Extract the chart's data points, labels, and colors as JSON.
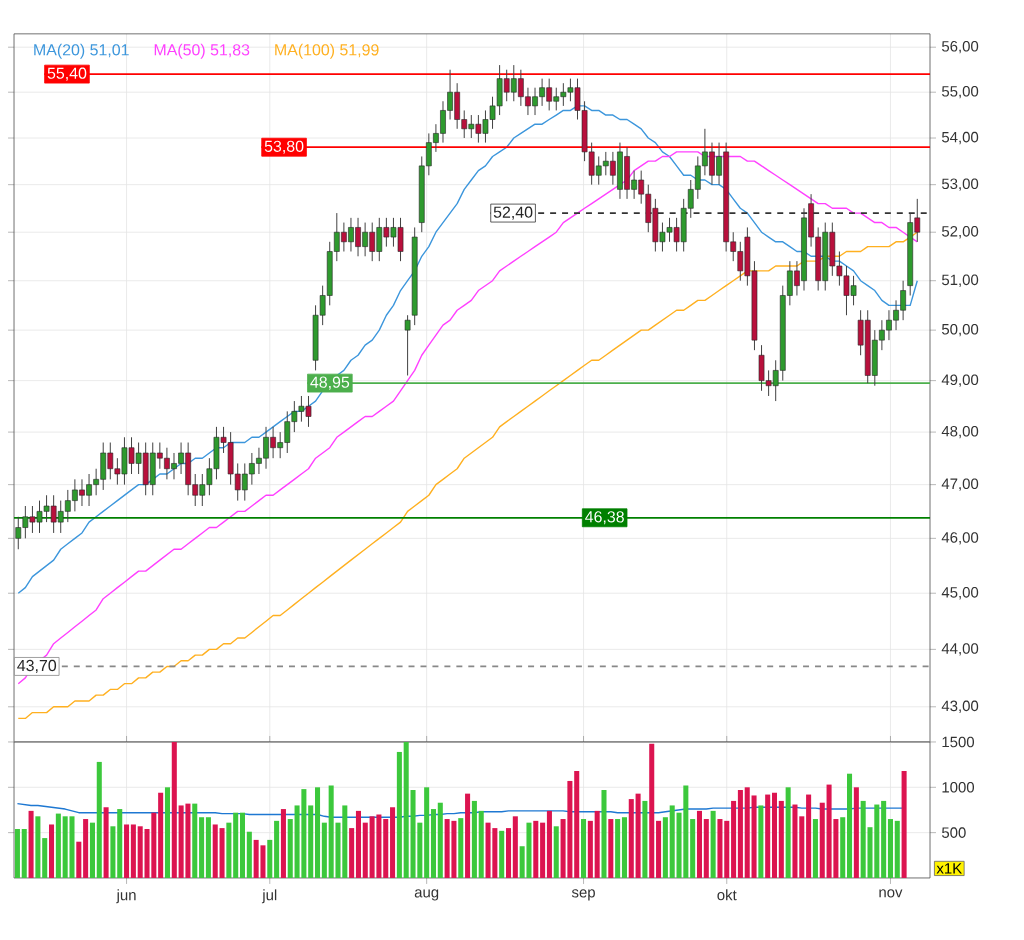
{
  "chart_data": [
    {
      "type": "candlestick",
      "categories": [
        null,
        null,
        null,
        null,
        null,
        null,
        null,
        null,
        null,
        null,
        null,
        null,
        null,
        null,
        null,
        null,
        null,
        null,
        null,
        null,
        null,
        null,
        null,
        null,
        null,
        null,
        null,
        null,
        null,
        null,
        null,
        null,
        null,
        null,
        null,
        null,
        null,
        null,
        null,
        null,
        null,
        null,
        null,
        null,
        null,
        null,
        null,
        null,
        null,
        null,
        null,
        null,
        null,
        null,
        null,
        null,
        null,
        null,
        null,
        null,
        null,
        null,
        null,
        null,
        null,
        null,
        null,
        null,
        null,
        null,
        null,
        null,
        null,
        null,
        null,
        null,
        null,
        null,
        null,
        null,
        null,
        null,
        null,
        null,
        null,
        null,
        null,
        null,
        null,
        null,
        null,
        null,
        null,
        null,
        null,
        null,
        null,
        null,
        null,
        null,
        null,
        null,
        null,
        null,
        null,
        null,
        null,
        null,
        null,
        null,
        null,
        null,
        null,
        null,
        null,
        null,
        null,
        null,
        null,
        null,
        null,
        null,
        null,
        null,
        null,
        null,
        null,
        null
      ],
      "ohlc": [
        [
          46.0,
          46.4,
          45.8,
          46.2
        ],
        [
          46.2,
          46.6,
          46.0,
          46.4
        ],
        [
          46.4,
          46.6,
          46.1,
          46.3
        ],
        [
          46.3,
          46.7,
          46.1,
          46.5
        ],
        [
          46.5,
          46.8,
          46.3,
          46.6
        ],
        [
          46.6,
          46.8,
          46.1,
          46.3
        ],
        [
          46.3,
          46.7,
          46.1,
          46.5
        ],
        [
          46.5,
          46.9,
          46.3,
          46.7
        ],
        [
          46.7,
          47.1,
          46.5,
          46.9
        ],
        [
          46.9,
          47.1,
          46.6,
          46.8
        ],
        [
          46.8,
          47.2,
          46.6,
          47.0
        ],
        [
          47.0,
          47.3,
          46.8,
          47.1
        ],
        [
          47.1,
          47.8,
          46.9,
          47.6
        ],
        [
          47.6,
          47.8,
          47.1,
          47.3
        ],
        [
          47.3,
          47.5,
          47.0,
          47.2
        ],
        [
          47.2,
          47.9,
          47.0,
          47.7
        ],
        [
          47.7,
          47.9,
          47.2,
          47.4
        ],
        [
          47.4,
          47.8,
          47.2,
          47.6
        ],
        [
          47.6,
          47.8,
          46.8,
          47.0
        ],
        [
          47.0,
          47.8,
          46.8,
          47.6
        ],
        [
          47.6,
          47.8,
          47.3,
          47.5
        ],
        [
          47.5,
          47.7,
          47.1,
          47.3
        ],
        [
          47.3,
          47.6,
          47.1,
          47.4
        ],
        [
          47.4,
          47.8,
          47.2,
          47.6
        ],
        [
          47.6,
          47.8,
          46.8,
          47.0
        ],
        [
          47.0,
          47.2,
          46.6,
          46.8
        ],
        [
          46.8,
          47.2,
          46.6,
          47.0
        ],
        [
          47.0,
          47.5,
          46.8,
          47.3
        ],
        [
          47.3,
          48.1,
          47.1,
          47.9
        ],
        [
          47.9,
          48.1,
          47.6,
          47.8
        ],
        [
          47.8,
          48.0,
          47.0,
          47.2
        ],
        [
          47.2,
          47.4,
          46.7,
          46.9
        ],
        [
          46.9,
          47.4,
          46.7,
          47.2
        ],
        [
          47.2,
          47.6,
          47.0,
          47.4
        ],
        [
          47.4,
          47.7,
          47.2,
          47.5
        ],
        [
          47.5,
          48.1,
          47.3,
          47.9
        ],
        [
          47.9,
          48.1,
          47.5,
          47.7
        ],
        [
          47.7,
          48.0,
          47.5,
          47.8
        ],
        [
          47.8,
          48.4,
          47.6,
          48.2
        ],
        [
          48.2,
          48.6,
          48.0,
          48.4
        ],
        [
          48.4,
          48.7,
          48.2,
          48.5
        ],
        [
          48.5,
          48.7,
          48.1,
          48.3
        ],
        [
          49.4,
          50.5,
          49.2,
          50.3
        ],
        [
          50.3,
          50.9,
          50.1,
          50.7
        ],
        [
          50.7,
          51.8,
          50.5,
          51.6
        ],
        [
          51.6,
          52.4,
          51.4,
          52.0
        ],
        [
          52.0,
          52.2,
          51.6,
          51.8
        ],
        [
          51.8,
          52.3,
          51.6,
          52.1
        ],
        [
          52.1,
          52.3,
          51.5,
          51.7
        ],
        [
          51.7,
          52.2,
          51.5,
          52.0
        ],
        [
          52.0,
          52.2,
          51.4,
          51.6
        ],
        [
          51.6,
          52.3,
          51.4,
          52.1
        ],
        [
          52.1,
          52.3,
          51.7,
          51.9
        ],
        [
          51.9,
          52.3,
          51.7,
          52.1
        ],
        [
          52.1,
          52.3,
          51.4,
          51.6
        ],
        [
          50.0,
          50.3,
          49.1,
          50.2
        ],
        [
          50.3,
          52.1,
          50.1,
          51.9
        ],
        [
          52.2,
          53.6,
          52.0,
          53.4
        ],
        [
          53.4,
          54.1,
          53.2,
          53.9
        ],
        [
          53.9,
          54.3,
          53.7,
          54.1
        ],
        [
          54.1,
          54.8,
          53.9,
          54.6
        ],
        [
          54.6,
          55.5,
          54.4,
          55.0
        ],
        [
          55.0,
          55.2,
          54.2,
          54.4
        ],
        [
          54.4,
          54.6,
          54.0,
          54.2
        ],
        [
          54.2,
          54.5,
          54.0,
          54.3
        ],
        [
          54.3,
          54.5,
          53.9,
          54.1
        ],
        [
          54.1,
          54.6,
          53.9,
          54.4
        ],
        [
          54.4,
          54.9,
          54.2,
          54.7
        ],
        [
          54.7,
          55.6,
          54.5,
          55.3
        ],
        [
          55.3,
          55.5,
          54.8,
          55.0
        ],
        [
          55.0,
          55.6,
          54.8,
          55.3
        ],
        [
          55.3,
          55.5,
          54.7,
          54.9
        ],
        [
          54.9,
          55.1,
          54.5,
          54.7
        ],
        [
          54.7,
          55.1,
          54.5,
          54.9
        ],
        [
          54.9,
          55.3,
          54.7,
          55.1
        ],
        [
          55.1,
          55.3,
          54.6,
          54.8
        ],
        [
          54.8,
          55.1,
          54.6,
          54.9
        ],
        [
          54.9,
          55.2,
          54.7,
          55.0
        ],
        [
          55.0,
          55.3,
          54.8,
          55.1
        ],
        [
          55.1,
          55.3,
          54.4,
          54.6
        ],
        [
          54.6,
          54.8,
          53.5,
          53.7
        ],
        [
          53.7,
          53.9,
          53.0,
          53.2
        ],
        [
          53.2,
          53.6,
          53.0,
          53.4
        ],
        [
          53.4,
          53.7,
          53.2,
          53.5
        ],
        [
          53.5,
          53.7,
          53.0,
          53.2
        ],
        [
          52.9,
          53.9,
          52.7,
          53.7
        ],
        [
          53.6,
          53.8,
          52.7,
          52.9
        ],
        [
          52.9,
          53.3,
          52.7,
          53.1
        ],
        [
          53.1,
          53.3,
          52.6,
          52.8
        ],
        [
          52.8,
          53.0,
          52.0,
          52.2
        ],
        [
          52.5,
          52.7,
          51.6,
          51.8
        ],
        [
          51.8,
          52.2,
          51.6,
          52.0
        ],
        [
          52.0,
          52.3,
          51.8,
          52.1
        ],
        [
          52.1,
          52.3,
          51.6,
          51.8
        ],
        [
          51.8,
          52.7,
          51.6,
          52.5
        ],
        [
          52.5,
          53.1,
          52.3,
          52.9
        ],
        [
          52.9,
          53.6,
          52.7,
          53.4
        ],
        [
          53.4,
          54.2,
          53.2,
          53.7
        ],
        [
          53.7,
          53.9,
          53.0,
          53.2
        ],
        [
          53.2,
          53.9,
          53.0,
          53.6
        ],
        [
          53.7,
          53.9,
          51.6,
          51.8
        ],
        [
          51.8,
          52.0,
          51.4,
          51.6
        ],
        [
          51.6,
          51.8,
          51.0,
          51.2
        ],
        [
          51.9,
          52.1,
          50.9,
          51.1
        ],
        [
          51.2,
          51.4,
          49.6,
          49.8
        ],
        [
          49.5,
          49.7,
          48.8,
          49.0
        ],
        [
          49.0,
          49.2,
          48.7,
          48.9
        ],
        [
          48.9,
          49.4,
          48.6,
          49.2
        ],
        [
          49.2,
          50.9,
          49.0,
          50.7
        ],
        [
          50.7,
          51.4,
          50.5,
          51.2
        ],
        [
          51.2,
          51.4,
          50.7,
          50.9
        ],
        [
          51.0,
          52.5,
          50.8,
          52.3
        ],
        [
          52.6,
          52.8,
          51.7,
          51.9
        ],
        [
          51.9,
          52.1,
          50.8,
          51.0
        ],
        [
          51.0,
          52.2,
          50.8,
          52.0
        ],
        [
          52.0,
          52.2,
          51.1,
          51.3
        ],
        [
          51.3,
          51.6,
          50.9,
          51.1
        ],
        [
          51.1,
          51.3,
          50.3,
          50.7
        ],
        [
          50.7,
          51.1,
          50.5,
          50.9
        ],
        [
          50.2,
          50.4,
          49.5,
          49.7
        ],
        [
          50.2,
          50.4,
          48.95,
          49.1
        ],
        [
          49.1,
          50.0,
          48.9,
          49.8
        ],
        [
          49.8,
          50.2,
          49.6,
          50.0
        ],
        [
          50.0,
          50.4,
          49.8,
          50.2
        ],
        [
          50.2,
          50.6,
          50.0,
          50.4
        ],
        [
          50.4,
          51.0,
          50.2,
          50.8
        ],
        [
          50.9,
          52.4,
          50.7,
          52.2
        ],
        [
          52.3,
          52.7,
          51.8,
          52.0
        ]
      ],
      "series": [
        {
          "type": "line",
          "name": "MA(20)  51,01",
          "color": "#3c96dc",
          "values": [
            45.0,
            45.1,
            45.3,
            45.4,
            45.5,
            45.6,
            45.8,
            45.9,
            46.0,
            46.1,
            46.3,
            46.4,
            46.5,
            46.6,
            46.7,
            46.8,
            46.9,
            47.0,
            47.0,
            47.1,
            47.2,
            47.2,
            47.3,
            47.4,
            47.4,
            47.5,
            47.5,
            47.6,
            47.7,
            47.7,
            47.8,
            47.8,
            47.8,
            47.9,
            47.9,
            48.0,
            48.1,
            48.2,
            48.3,
            48.4,
            48.4,
            48.5,
            48.6,
            48.8,
            48.9,
            49.1,
            49.2,
            49.4,
            49.5,
            49.7,
            49.8,
            50.0,
            50.3,
            50.5,
            50.8,
            51.0,
            51.2,
            51.5,
            51.7,
            52.0,
            52.2,
            52.4,
            52.6,
            52.9,
            53.1,
            53.3,
            53.4,
            53.6,
            53.7,
            53.8,
            54.0,
            54.1,
            54.2,
            54.3,
            54.3,
            54.4,
            54.5,
            54.6,
            54.6,
            54.7,
            54.7,
            54.6,
            54.6,
            54.5,
            54.5,
            54.4,
            54.4,
            54.3,
            54.2,
            54.0,
            53.9,
            53.7,
            53.6,
            53.4,
            53.2,
            53.2,
            53.1,
            53.1,
            53.0,
            53.0,
            52.9,
            52.7,
            52.5,
            52.4,
            52.2,
            52.0,
            51.9,
            51.8,
            51.8,
            51.7,
            51.6,
            51.6,
            51.5,
            51.5,
            51.5,
            51.4,
            51.4,
            51.3,
            51.2,
            51.0,
            50.9,
            50.8,
            50.6,
            50.5,
            50.5,
            50.5,
            50.5,
            51.0
          ]
        },
        {
          "type": "line",
          "name": "MA(50)  51,83",
          "color": "#ff40ff",
          "values": [
            43.4,
            43.5,
            43.7,
            43.8,
            43.9,
            44.1,
            44.2,
            44.3,
            44.4,
            44.5,
            44.6,
            44.7,
            44.9,
            45.0,
            45.1,
            45.2,
            45.3,
            45.4,
            45.4,
            45.5,
            45.6,
            45.7,
            45.8,
            45.8,
            45.9,
            46.0,
            46.1,
            46.2,
            46.2,
            46.3,
            46.4,
            46.5,
            46.5,
            46.6,
            46.7,
            46.8,
            46.8,
            46.9,
            47.0,
            47.1,
            47.2,
            47.3,
            47.5,
            47.6,
            47.7,
            47.9,
            48.0,
            48.1,
            48.2,
            48.3,
            48.3,
            48.4,
            48.5,
            48.6,
            48.8,
            49.0,
            49.2,
            49.5,
            49.7,
            49.9,
            50.1,
            50.2,
            50.4,
            50.5,
            50.6,
            50.8,
            50.9,
            51.0,
            51.2,
            51.3,
            51.4,
            51.5,
            51.6,
            51.7,
            51.8,
            51.9,
            52.0,
            52.2,
            52.3,
            52.4,
            52.5,
            52.6,
            52.7,
            52.8,
            52.9,
            53.0,
            53.1,
            53.3,
            53.4,
            53.5,
            53.5,
            53.6,
            53.6,
            53.7,
            53.7,
            53.7,
            53.7,
            53.6,
            53.6,
            53.6,
            53.6,
            53.6,
            53.6,
            53.5,
            53.5,
            53.4,
            53.3,
            53.2,
            53.1,
            53.0,
            52.9,
            52.8,
            52.7,
            52.6,
            52.6,
            52.5,
            52.5,
            52.5,
            52.4,
            52.4,
            52.3,
            52.2,
            52.2,
            52.1,
            52.1,
            52.0,
            51.9,
            51.8
          ]
        },
        {
          "type": "line",
          "name": "MA(100)  51,99",
          "color": "#ffb020",
          "values": [
            42.8,
            42.8,
            42.9,
            42.9,
            42.9,
            43.0,
            43.0,
            43.0,
            43.1,
            43.1,
            43.1,
            43.2,
            43.2,
            43.3,
            43.3,
            43.4,
            43.4,
            43.5,
            43.5,
            43.6,
            43.6,
            43.7,
            43.7,
            43.8,
            43.8,
            43.9,
            43.9,
            44.0,
            44.0,
            44.1,
            44.1,
            44.2,
            44.2,
            44.3,
            44.4,
            44.5,
            44.6,
            44.6,
            44.7,
            44.8,
            44.9,
            45.0,
            45.1,
            45.2,
            45.3,
            45.4,
            45.5,
            45.6,
            45.7,
            45.8,
            45.9,
            46.0,
            46.1,
            46.2,
            46.3,
            46.5,
            46.6,
            46.7,
            46.8,
            47.0,
            47.1,
            47.2,
            47.3,
            47.5,
            47.6,
            47.7,
            47.8,
            47.9,
            48.1,
            48.2,
            48.3,
            48.4,
            48.5,
            48.6,
            48.7,
            48.8,
            48.9,
            49.0,
            49.1,
            49.2,
            49.3,
            49.4,
            49.4,
            49.5,
            49.6,
            49.7,
            49.8,
            49.9,
            50.0,
            50.0,
            50.1,
            50.2,
            50.3,
            50.4,
            50.4,
            50.5,
            50.6,
            50.6,
            50.7,
            50.8,
            50.9,
            51.0,
            51.1,
            51.2,
            51.2,
            51.2,
            51.2,
            51.3,
            51.3,
            51.3,
            51.3,
            51.4,
            51.4,
            51.4,
            51.5,
            51.5,
            51.5,
            51.6,
            51.6,
            51.6,
            51.7,
            51.7,
            51.7,
            51.7,
            51.8,
            51.8,
            51.9,
            52.0
          ]
        }
      ],
      "ref_lines": [
        {
          "axis": "y",
          "value": 55.4,
          "label": "55,40",
          "color": "#ff0000"
        },
        {
          "axis": "y",
          "value": 53.8,
          "label": "53,80",
          "color": "#ff0000"
        },
        {
          "axis": "y",
          "value": 48.95,
          "label": "48,95",
          "color": "#4caf4c"
        },
        {
          "axis": "y",
          "value": 52.4,
          "label": "52,40",
          "color": "#333333",
          "line_style": "dashed"
        },
        {
          "axis": "y",
          "value": 46.38,
          "label": "46,38",
          "color": "#008000"
        },
        {
          "axis": "y",
          "value": 43.7,
          "label": "43,70",
          "color": "#888888",
          "line_style": "dashed"
        }
      ],
      "ylim": [
        42.4,
        56.3
      ],
      "yticks": [
        {
          "value": 43,
          "label": "43,00"
        },
        {
          "value": 44,
          "label": "44,00"
        },
        {
          "value": 45,
          "label": "45,00"
        },
        {
          "value": 46,
          "label": "46,00"
        },
        {
          "value": 47,
          "label": "47,00"
        },
        {
          "value": 48,
          "label": "48,00"
        },
        {
          "value": 49,
          "label": "49,00"
        },
        {
          "value": 50,
          "label": "50,00"
        },
        {
          "value": 51,
          "label": "51,00"
        },
        {
          "value": 52,
          "label": "52,00"
        },
        {
          "value": 53,
          "label": "53,00"
        },
        {
          "value": 54,
          "label": "54,00"
        },
        {
          "value": 55,
          "label": "55,00"
        },
        {
          "value": 56,
          "label": "56,00"
        }
      ],
      "log": true,
      "grid": true,
      "legend": "top left",
      "tick_labels": "y"
    },
    {
      "type": "bar",
      "categories": [
        null,
        null,
        null,
        null,
        null,
        null,
        null,
        null,
        null,
        null,
        null,
        null,
        null,
        null,
        null,
        null,
        "jun",
        null,
        null,
        null,
        null,
        null,
        null,
        null,
        null,
        null,
        null,
        null,
        null,
        null,
        null,
        null,
        null,
        null,
        null,
        null,
        null,
        "jul",
        null,
        null,
        null,
        null,
        null,
        null,
        null,
        null,
        null,
        null,
        null,
        null,
        null,
        null,
        null,
        null,
        null,
        null,
        null,
        null,
        null,
        null,
        "aug",
        null,
        null,
        null,
        null,
        null,
        null,
        null,
        null,
        null,
        null,
        null,
        null,
        null,
        null,
        null,
        null,
        null,
        null,
        null,
        null,
        null,
        null,
        "sep",
        null,
        null,
        null,
        null,
        null,
        null,
        null,
        null,
        null,
        null,
        null,
        null,
        null,
        null,
        null,
        null,
        null,
        null,
        null,
        null,
        "okt",
        null,
        null,
        null,
        null,
        null,
        null,
        null,
        null,
        null,
        null,
        null,
        null,
        null,
        null,
        null,
        null,
        null,
        null,
        null,
        null,
        null,
        null,
        null,
        "nov",
        null,
        null
      ],
      "values": [
        540,
        540,
        740,
        680,
        440,
        590,
        710,
        680,
        680,
        400,
        650,
        610,
        1280,
        780,
        570,
        760,
        590,
        590,
        570,
        540,
        720,
        940,
        1000,
        1500,
        800,
        820,
        820,
        670,
        670,
        590,
        550,
        610,
        720,
        720,
        510,
        420,
        360,
        420,
        630,
        760,
        650,
        800,
        980,
        800,
        1000,
        610,
        1020,
        610,
        800,
        550,
        740,
        610,
        680,
        700,
        650,
        780,
        1390,
        1500,
        970,
        610,
        1000,
        760,
        830,
        650,
        630,
        660,
        930,
        850,
        740,
        610,
        550,
        520,
        550,
        680,
        350,
        610,
        630,
        610,
        740,
        570,
        650,
        1070,
        1180,
        650,
        630,
        740,
        970,
        650,
        650,
        670,
        870,
        930,
        850,
        1480,
        630,
        670,
        800,
        720,
        1020,
        650,
        740,
        650,
        740,
        650,
        630,
        850,
        970,
        1000,
        910,
        800,
        920,
        940,
        850,
        1000,
        810,
        680,
        920,
        650,
        830,
        1030,
        650,
        670,
        1150,
        1000,
        850,
        560,
        810,
        850,
        650,
        630,
        1180
      ],
      "colors": [
        "#3cc83c",
        "#3cc83c",
        "#dc1450",
        "#3cc83c",
        "#3cc83c",
        "#dc1450",
        "#3cc83c",
        "#3cc83c",
        "#3cc83c",
        "#dc1450",
        "#dc1450",
        "#3cc83c",
        "#3cc83c",
        "#dc1450",
        "#3cc83c",
        "#3cc83c",
        "#dc1450",
        "#dc1450",
        "#dc1450",
        "#dc1450",
        "#dc1450",
        "#dc1450",
        "#3cc83c",
        "#dc1450",
        "#dc1450",
        "#dc1450",
        "#3cc83c",
        "#3cc83c",
        "#3cc83c",
        "#dc1450",
        "#dc1450",
        "#3cc83c",
        "#3cc83c",
        "#3cc83c",
        "#3cc83c",
        "#dc1450",
        "#dc1450",
        "#3cc83c",
        "#3cc83c",
        "#dc1450",
        "#3cc83c",
        "#3cc83c",
        "#3cc83c",
        "#3cc83c",
        "#3cc83c",
        "#3cc83c",
        "#3cc83c",
        "#3cc83c",
        "#3cc83c",
        "#dc1450",
        "#dc1450",
        "#dc1450",
        "#dc1450",
        "#dc1450",
        "#dc1450",
        "#dc1450",
        "#3cc83c",
        "#3cc83c",
        "#3cc83c",
        "#3cc83c",
        "#3cc83c",
        "#3cc83c",
        "#3cc83c",
        "#dc1450",
        "#dc1450",
        "#3cc83c",
        "#dc1450",
        "#3cc83c",
        "#3cc83c",
        "#dc1450",
        "#dc1450",
        "#3cc83c",
        "#dc1450",
        "#dc1450",
        "#3cc83c",
        "#3cc83c",
        "#dc1450",
        "#dc1450",
        "#dc1450",
        "#3cc83c",
        "#dc1450",
        "#dc1450",
        "#dc1450",
        "#3cc83c",
        "#dc1450",
        "#dc1450",
        "#3cc83c",
        "#dc1450",
        "#3cc83c",
        "#3cc83c",
        "#dc1450",
        "#dc1450",
        "#3cc83c",
        "#dc1450",
        "#dc1450",
        "#3cc83c",
        "#3cc83c",
        "#3cc83c",
        "#3cc83c",
        "#3cc83c",
        "#dc1450",
        "#dc1450",
        "#3cc83c",
        "#dc1450",
        "#dc1450",
        "#dc1450",
        "#dc1450",
        "#dc1450",
        "#dc1450",
        "#3cc83c",
        "#dc1450",
        "#dc1450",
        "#dc1450",
        "#3cc83c",
        "#dc1450",
        "#dc1450",
        "#dc1450",
        "#3cc83c",
        "#dc1450",
        "#dc1450",
        "#dc1450",
        "#3cc83c",
        "#3cc83c",
        "#dc1450",
        "#3cc83c",
        "#3cc83c",
        "#3cc83c",
        "#3cc83c",
        "#3cc83c",
        "#3cc83c",
        "#dc1450"
      ],
      "series": [
        {
          "type": "line",
          "color": "#1e78d2",
          "values": [
            820,
            810,
            800,
            800,
            790,
            780,
            770,
            760,
            740,
            720,
            720,
            720,
            720,
            720,
            720,
            720,
            720,
            720,
            720,
            720,
            720,
            720,
            720,
            720,
            720,
            720,
            720,
            720,
            720,
            720,
            710,
            710,
            710,
            710,
            700,
            700,
            700,
            700,
            700,
            700,
            700,
            700,
            700,
            700,
            700,
            680,
            670,
            670,
            670,
            670,
            670,
            670,
            670,
            670,
            670,
            670,
            670,
            680,
            680,
            690,
            690,
            700,
            700,
            710,
            710,
            720,
            720,
            720,
            730,
            730,
            730,
            730,
            740,
            740,
            740,
            740,
            740,
            740,
            740,
            740,
            740,
            730,
            730,
            730,
            730,
            730,
            730,
            730,
            720,
            720,
            720,
            720,
            720,
            720,
            720,
            730,
            740,
            750,
            760,
            760,
            760,
            760,
            770,
            770,
            770,
            770,
            770,
            770,
            780,
            780,
            780,
            780,
            780,
            780,
            780,
            770,
            770,
            770,
            760,
            760,
            760,
            760,
            760,
            770,
            770,
            770,
            770,
            770,
            770,
            770,
            770
          ]
        }
      ],
      "ylim": [
        0,
        1500
      ],
      "yticks": [
        500,
        1000,
        1500
      ],
      "grid": true,
      "annotations": [
        "x1K"
      ]
    }
  ]
}
